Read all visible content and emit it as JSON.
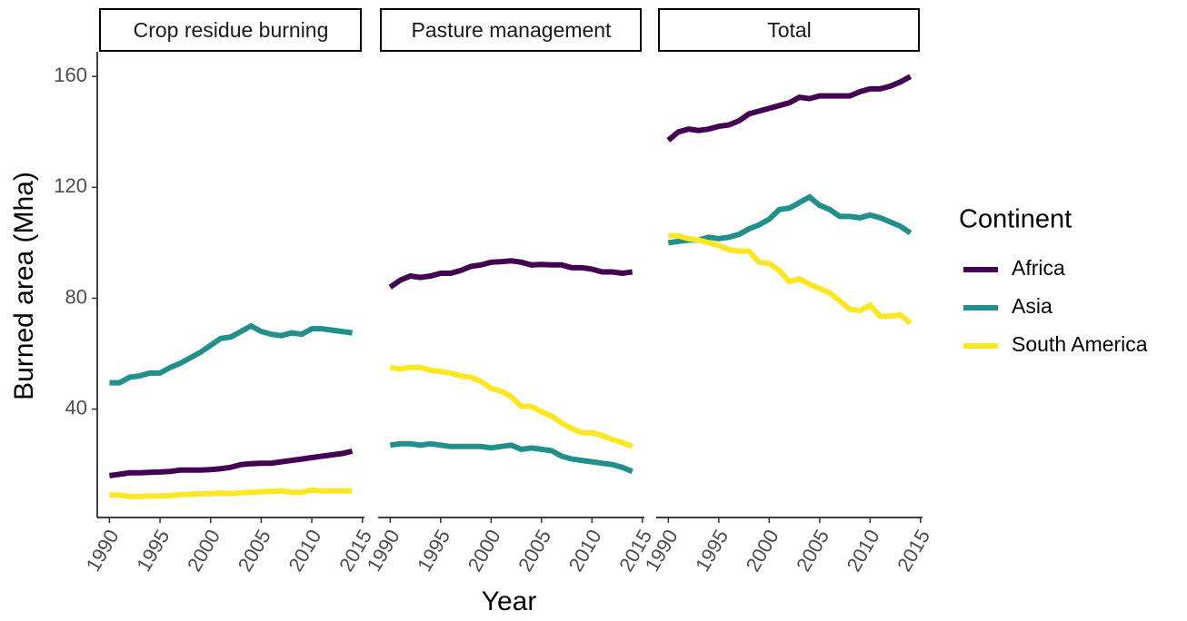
{
  "chart_data": {
    "type": "line",
    "facets": [
      "Crop residue burning",
      "Pasture management",
      "Total"
    ],
    "xlabel": "Year",
    "ylabel": "Burned area (Mha)",
    "legend_title": "Continent",
    "x": [
      1990,
      1991,
      1992,
      1993,
      1994,
      1995,
      1996,
      1997,
      1998,
      1999,
      2000,
      2001,
      2002,
      2003,
      2004,
      2005,
      2006,
      2007,
      2008,
      2009,
      2010,
      2011,
      2012,
      2013,
      2014
    ],
    "xlim": [
      1988.8,
      2015.2
    ],
    "xticks": [
      1990,
      1995,
      2000,
      2005,
      2010,
      2015
    ],
    "ylim": [
      0.9,
      167.6
    ],
    "yticks": [
      40,
      80,
      120,
      160
    ],
    "series": [
      {
        "name": "Africa",
        "color": "#440154",
        "values": [
          [
            16,
            16.5,
            17,
            17,
            17.2,
            17.3,
            17.5,
            18,
            18,
            18,
            18.2,
            18.5,
            19,
            20,
            20.3,
            20.5,
            20.5,
            21,
            21.5,
            22,
            22.5,
            23,
            23.5,
            24,
            24.8
          ],
          [
            84,
            86.5,
            88,
            87.5,
            88,
            89,
            89,
            90,
            91.5,
            92,
            93,
            93.2,
            93.5,
            93,
            92,
            92.2,
            92,
            92,
            91,
            91,
            90.5,
            89.5,
            89.5,
            89,
            89.5
          ],
          [
            137,
            140,
            141,
            140.5,
            141,
            142,
            142.5,
            144,
            146.5,
            147.5,
            148.5,
            149.5,
            150.5,
            152.5,
            152,
            153,
            153,
            153,
            153,
            154.5,
            155.5,
            155.5,
            156.5,
            158,
            160
          ]
        ]
      },
      {
        "name": "Asia",
        "color": "#21908C",
        "values": [
          [
            49.5,
            49.5,
            51.5,
            52,
            53,
            53,
            55,
            56.5,
            58.5,
            60.5,
            63,
            65.5,
            66,
            68,
            70,
            68,
            67,
            66.5,
            67.5,
            67,
            69,
            69,
            68.5,
            68,
            67.5
          ],
          [
            27,
            27.5,
            27.5,
            27,
            27.5,
            27,
            26.5,
            26.5,
            26.5,
            26.5,
            26,
            26.5,
            27,
            25.5,
            26,
            25.5,
            25,
            23,
            22,
            21.5,
            21,
            20.5,
            20,
            19,
            17.5
          ],
          [
            100,
            100.5,
            101,
            101,
            102,
            101.5,
            102,
            103,
            105,
            106.5,
            108.5,
            112,
            112.5,
            114.5,
            116.5,
            113.5,
            112,
            109.5,
            109.5,
            109,
            110,
            109,
            107.5,
            106,
            103.5
          ]
        ]
      },
      {
        "name": "South America",
        "color": "#FDE725",
        "values": [
          [
            9,
            9,
            8.5,
            8.5,
            8.7,
            8.7,
            8.8,
            9.2,
            9.3,
            9.4,
            9.5,
            9.7,
            9.5,
            9.8,
            10,
            10.2,
            10.3,
            10.5,
            10,
            10,
            10.8,
            10.5,
            10.5,
            10.5,
            10.5
          ],
          [
            55,
            54.5,
            55,
            55,
            54,
            53.5,
            53,
            52,
            51.5,
            50,
            47.5,
            46.5,
            44.5,
            41,
            41,
            39,
            37.5,
            35,
            33,
            31.5,
            31.5,
            30.5,
            29,
            28,
            26.5
          ],
          [
            102.5,
            102.5,
            101.5,
            101,
            100,
            99,
            97.5,
            97,
            97,
            93,
            92.5,
            90,
            86,
            87,
            85,
            83.5,
            82,
            79,
            76,
            75.5,
            77.5,
            73.5,
            73.5,
            74,
            71
          ]
        ]
      }
    ]
  }
}
